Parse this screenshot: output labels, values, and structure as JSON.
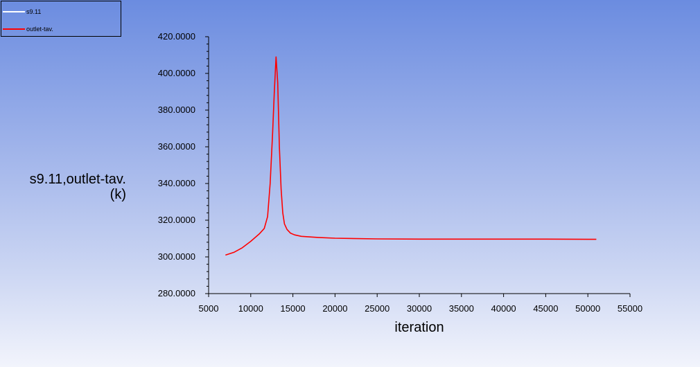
{
  "legend": {
    "items": [
      {
        "label": "s9.11",
        "color": "#ffffff"
      },
      {
        "label": "outlet-tav.",
        "color": "#ff0000"
      }
    ]
  },
  "axes": {
    "ylabel_line1": "s9.11,outlet-tav.",
    "ylabel_line2": "(k)",
    "xlabel": "iteration"
  },
  "chart_data": {
    "type": "line",
    "xlabel": "iteration",
    "ylabel": "s9.11,outlet-tav. (k)",
    "xlim": [
      5000,
      55000
    ],
    "ylim": [
      280,
      420
    ],
    "x_ticks": [
      5000,
      10000,
      15000,
      20000,
      25000,
      30000,
      35000,
      40000,
      45000,
      50000,
      55000
    ],
    "x_tick_labels": [
      "5000",
      "10000",
      "15000",
      "20000",
      "25000",
      "30000",
      "35000",
      "40000",
      "45000",
      "50000",
      "55000"
    ],
    "y_ticks": [
      280,
      300,
      320,
      340,
      360,
      380,
      400,
      420
    ],
    "y_tick_labels": [
      "280.0000",
      "300.0000",
      "320.0000",
      "340.0000",
      "360.0000",
      "380.0000",
      "400.0000",
      "420.0000"
    ],
    "grid": false,
    "legend_position": "top-left",
    "series": [
      {
        "name": "outlet-tav.",
        "color": "#ff0000",
        "x": [
          7000,
          8000,
          9000,
          10000,
          11000,
          11600,
          12000,
          12300,
          12600,
          12800,
          13000,
          13200,
          13400,
          13600,
          13800,
          14000,
          14300,
          14700,
          15200,
          16000,
          18000,
          20000,
          25000,
          30000,
          35000,
          40000,
          45000,
          50000,
          51000
        ],
        "y": [
          301,
          302.5,
          305,
          308.5,
          312.5,
          315.5,
          322,
          340,
          368,
          390,
          409,
          395,
          360,
          337,
          324,
          318,
          315,
          313,
          312,
          311.2,
          310.6,
          310.2,
          309.8,
          309.7,
          309.7,
          309.7,
          309.7,
          309.6,
          309.6
        ]
      }
    ]
  }
}
